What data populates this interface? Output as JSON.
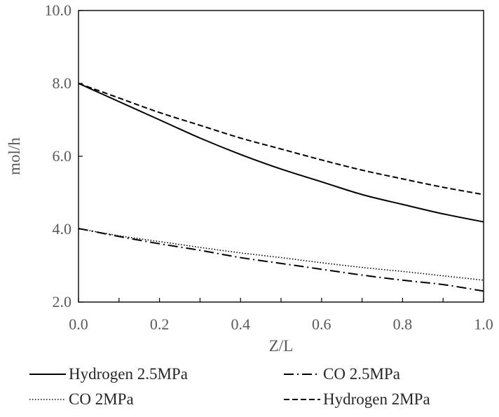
{
  "chart_data": {
    "type": "line",
    "title": "",
    "xlabel": "Z/L",
    "ylabel": "mol/h",
    "xlim": [
      0.0,
      1.0
    ],
    "ylim": [
      2.0,
      10.0
    ],
    "x_ticks": [
      "0.0",
      "0.2",
      "0.4",
      "0.6",
      "0.8",
      "1.0"
    ],
    "y_ticks": [
      "2.0",
      "4.0",
      "6.0",
      "8.0",
      "10.0"
    ],
    "x": [
      0.0,
      0.1,
      0.2,
      0.3,
      0.4,
      0.5,
      0.6,
      0.7,
      0.8,
      0.9,
      1.0
    ],
    "series": [
      {
        "name": "Hydrogen 2.5MPa",
        "dash": "solid",
        "values": [
          8.0,
          7.5,
          7.0,
          6.5,
          6.05,
          5.65,
          5.3,
          4.95,
          4.68,
          4.42,
          4.2
        ]
      },
      {
        "name": "CO 2.5MPa",
        "dash": "dashdot",
        "values": [
          4.02,
          3.8,
          3.6,
          3.42,
          3.22,
          3.06,
          2.9,
          2.74,
          2.6,
          2.48,
          2.3
        ]
      },
      {
        "name": "CO 2MPa",
        "dash": "dotted",
        "values": [
          4.02,
          3.82,
          3.66,
          3.5,
          3.35,
          3.22,
          3.08,
          2.95,
          2.84,
          2.72,
          2.6
        ]
      },
      {
        "name": "Hydrogen 2MPa",
        "dash": "dashed",
        "values": [
          8.0,
          7.6,
          7.2,
          6.85,
          6.5,
          6.2,
          5.9,
          5.62,
          5.38,
          5.15,
          4.95
        ]
      }
    ],
    "legend": "bottom",
    "grid": false
  }
}
